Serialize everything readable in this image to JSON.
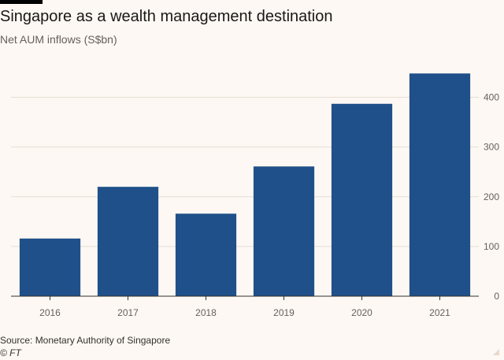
{
  "title": "Singapore as a wealth management destination",
  "subtitle": "Net AUM inflows (S$bn)",
  "source": "Source: Monetary Authority of Singapore",
  "credit": "© FT",
  "colors": {
    "bar": "#1f5089",
    "grid": "#e6ddd5",
    "axis": "#33302e",
    "background": "#fdf8f3"
  },
  "chart_data": {
    "type": "bar",
    "title": "Singapore as a wealth management destination",
    "subtitle": "Net AUM inflows (S$bn)",
    "categories": [
      "2016",
      "2017",
      "2018",
      "2019",
      "2020",
      "2021"
    ],
    "values": [
      116,
      220,
      166,
      261,
      387,
      448
    ],
    "ylim": [
      0,
      450
    ],
    "yticks": [
      0,
      100,
      200,
      300,
      400
    ],
    "y_axis_side": "right",
    "grid": true
  }
}
